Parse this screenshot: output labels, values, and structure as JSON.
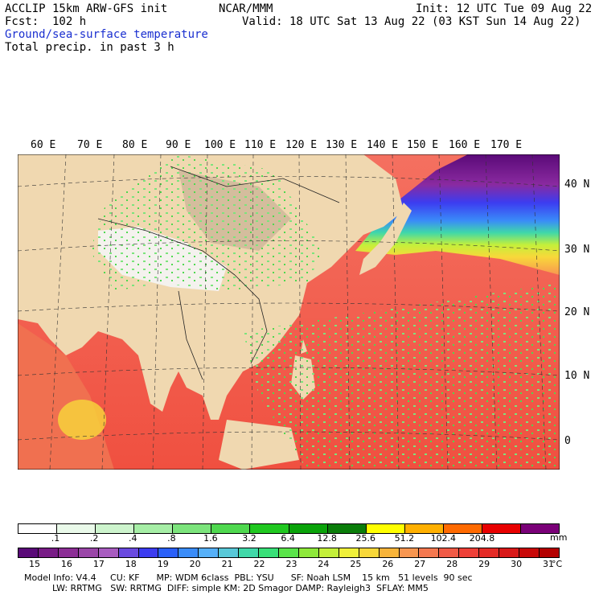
{
  "header": {
    "model": "ACCLIP 15km ARW-GFS init",
    "center": "NCAR/MMM",
    "init": "Init: 12 UTC Tue 09 Aug 22",
    "fcst": "Fcst:  102 h",
    "valid": "Valid: 18 UTC Sat 13 Aug 22 (03 KST Sun 14 Aug 22)",
    "field1": "Ground/sea-surface temperature",
    "field2": "Total precip. in past 3 h"
  },
  "map": {
    "lon_labels": [
      "60 E",
      "70 E",
      "80 E",
      "90 E",
      "100 E",
      "110 E",
      "120 E",
      "130 E",
      "140 E",
      "150 E",
      "160 E",
      "170 E"
    ],
    "lat_labels": [
      "40 N",
      "30 N",
      "20 N",
      "10 N",
      "0"
    ]
  },
  "precip_scale": {
    "labels": [
      ".1",
      ".2",
      ".4",
      ".8",
      "1.6",
      "3.2",
      "6.4",
      "12.8",
      "25.6",
      "51.2",
      "102.4",
      "204.8"
    ],
    "unit": "mm",
    "colors": [
      "#ffffff",
      "#eafaea",
      "#cdf4cd",
      "#a6eea6",
      "#7ce47c",
      "#4fd84f",
      "#20c820",
      "#0aa30a",
      "#0a7d0a",
      "#ffff00",
      "#ffb000",
      "#ff6a00",
      "#e80000",
      "#7a0078"
    ]
  },
  "temp_scale": {
    "labels": [
      "15",
      "16",
      "17",
      "18",
      "19",
      "20",
      "21",
      "22",
      "23",
      "24",
      "25",
      "26",
      "27",
      "28",
      "29",
      "30",
      "31"
    ],
    "unit": "°C",
    "colors": [
      "#5a0a78",
      "#781c86",
      "#8c2e96",
      "#9a46a8",
      "#a85cc0",
      "#6a4ae0",
      "#3c3cf0",
      "#2a60f8",
      "#3a8cf8",
      "#56b0f8",
      "#58c8d8",
      "#40d8a8",
      "#38e078",
      "#5ae44a",
      "#8ee83a",
      "#c4f03a",
      "#f0f03a",
      "#f8d83a",
      "#f8b43a",
      "#f89650",
      "#f47850",
      "#f05a46",
      "#ee4038",
      "#e42a26",
      "#d81818",
      "#c80808",
      "#b40000"
    ]
  },
  "footer": {
    "line1": "Model Info: V4.4     CU: KF      MP: WDM 6class  PBL: YSU      SF: Noah LSM    15 km   51 levels  90 sec",
    "line2": "          LW: RRTMG   SW: RRTMG  DIFF: simple KM: 2D Smagor DAMP: Rayleigh3  SFLAY: MM5"
  }
}
